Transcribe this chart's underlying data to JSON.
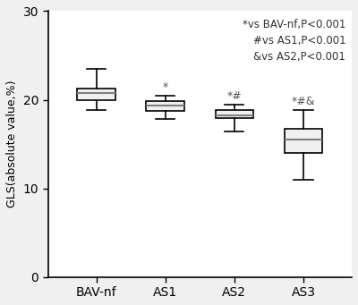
{
  "categories": [
    "BAV-nf",
    "AS1",
    "AS2",
    "AS3"
  ],
  "boxes": [
    {
      "whislo": 18.8,
      "q1": 20.0,
      "med": 20.8,
      "q3": 21.3,
      "whishi": 23.5
    },
    {
      "whislo": 17.8,
      "q1": 18.7,
      "med": 19.3,
      "q3": 19.8,
      "whishi": 20.5
    },
    {
      "whislo": 16.4,
      "q1": 17.9,
      "med": 18.2,
      "q3": 18.8,
      "whishi": 19.4
    },
    {
      "whislo": 11.0,
      "q1": 14.0,
      "med": 15.5,
      "q3": 16.7,
      "whishi": 18.8
    }
  ],
  "significance_labels": [
    "",
    "*",
    "*#",
    "*#&"
  ],
  "annotation_lines": [
    "*vs BAV-nf,P<0.001",
    "#vs AS1,P<0.001",
    "&vs AS2,P<0.001"
  ],
  "ylabel": "GLS(absolute value,%)",
  "ylim": [
    0,
    30
  ],
  "yticks": [
    0,
    10,
    20,
    30
  ],
  "box_facecolor": "#f0f0f0",
  "box_edgecolor": "#000000",
  "median_color": "#808080",
  "whisker_color": "#000000",
  "cap_color": "#000000",
  "background_color": "#ffffff",
  "figure_facecolor": "#f0f0f0"
}
